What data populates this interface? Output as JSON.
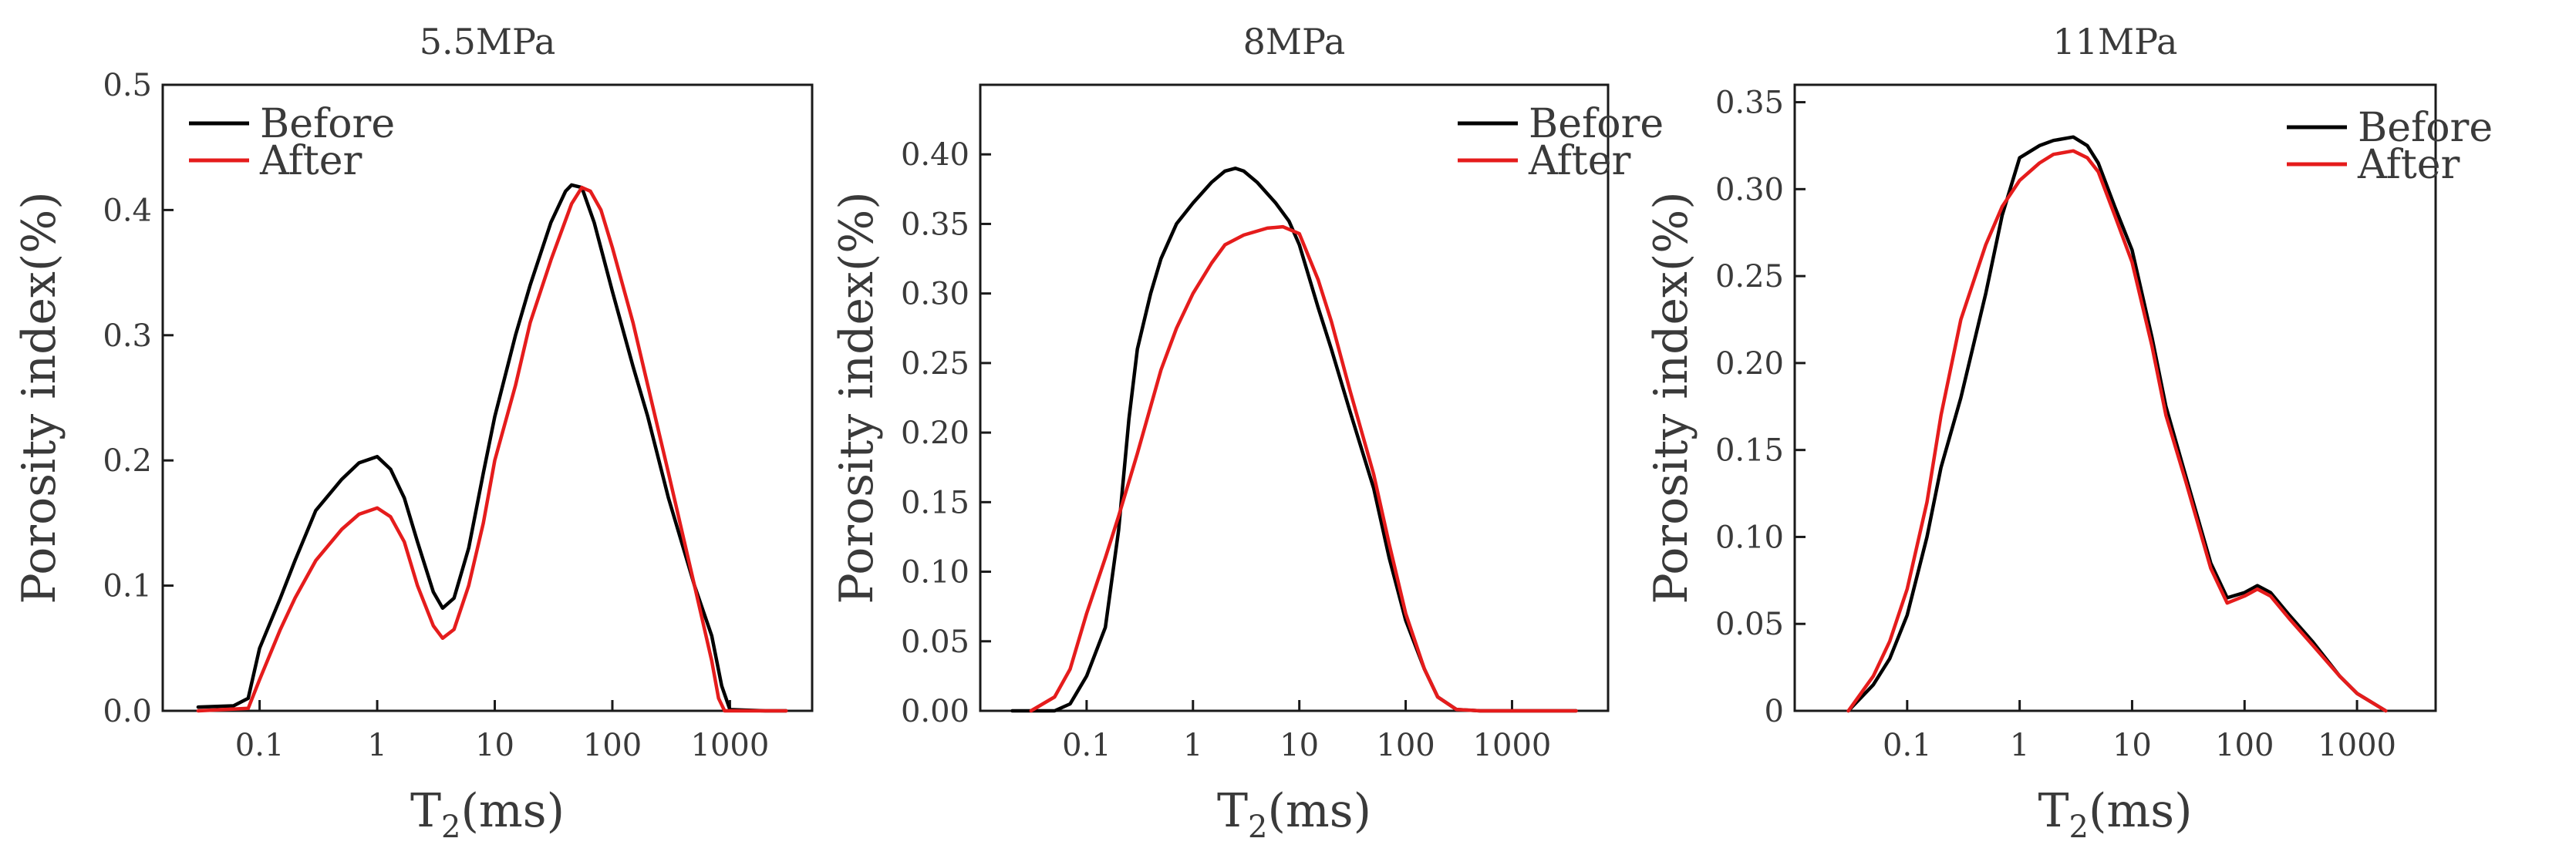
{
  "chart_data": [
    {
      "type": "line",
      "title": "5.5MPa",
      "xlabel": "T",
      "xlabel_sub": "2",
      "xlabel_unit": "(ms)",
      "ylabel": "Porosity index(%)",
      "xscale": "log",
      "xlim": [
        0.015,
        5000
      ],
      "ylim": [
        0,
        0.5
      ],
      "xticks": [
        0.1,
        1,
        10,
        100,
        1000
      ],
      "xtick_labels": [
        "0.1",
        "1",
        "10",
        "100",
        "1000"
      ],
      "yticks": [
        0,
        0.1,
        0.2,
        0.3,
        0.4,
        0.5
      ],
      "ytick_labels": [
        "0.0",
        "0.1",
        "0.2",
        "0.3",
        "0.4",
        "0.5"
      ],
      "legend_position": "top-left",
      "series": [
        {
          "name": "Before",
          "color": "#000000",
          "points": [
            [
              0.03,
              0.003
            ],
            [
              0.06,
              0.004
            ],
            [
              0.08,
              0.01
            ],
            [
              0.1,
              0.05
            ],
            [
              0.15,
              0.09
            ],
            [
              0.2,
              0.12
            ],
            [
              0.3,
              0.16
            ],
            [
              0.5,
              0.185
            ],
            [
              0.7,
              0.198
            ],
            [
              1,
              0.203
            ],
            [
              1.3,
              0.193
            ],
            [
              1.7,
              0.17
            ],
            [
              2.2,
              0.135
            ],
            [
              3,
              0.095
            ],
            [
              3.6,
              0.082
            ],
            [
              4.5,
              0.09
            ],
            [
              6,
              0.13
            ],
            [
              8,
              0.19
            ],
            [
              10,
              0.235
            ],
            [
              15,
              0.3
            ],
            [
              20,
              0.34
            ],
            [
              30,
              0.39
            ],
            [
              40,
              0.415
            ],
            [
              45,
              0.42
            ],
            [
              55,
              0.418
            ],
            [
              70,
              0.39
            ],
            [
              100,
              0.335
            ],
            [
              150,
              0.275
            ],
            [
              200,
              0.235
            ],
            [
              300,
              0.17
            ],
            [
              500,
              0.1
            ],
            [
              700,
              0.06
            ],
            [
              850,
              0.02
            ],
            [
              1000,
              0.001
            ],
            [
              2000,
              0.0
            ],
            [
              3000,
              0.0
            ]
          ]
        },
        {
          "name": "After",
          "color": "#e51c1c",
          "points": [
            [
              0.03,
              0.0
            ],
            [
              0.08,
              0.002
            ],
            [
              0.1,
              0.025
            ],
            [
              0.15,
              0.065
            ],
            [
              0.2,
              0.09
            ],
            [
              0.3,
              0.12
            ],
            [
              0.5,
              0.145
            ],
            [
              0.7,
              0.157
            ],
            [
              1,
              0.162
            ],
            [
              1.3,
              0.155
            ],
            [
              1.7,
              0.135
            ],
            [
              2.2,
              0.1
            ],
            [
              3,
              0.068
            ],
            [
              3.6,
              0.058
            ],
            [
              4.5,
              0.065
            ],
            [
              6,
              0.1
            ],
            [
              8,
              0.15
            ],
            [
              10,
              0.2
            ],
            [
              15,
              0.26
            ],
            [
              20,
              0.31
            ],
            [
              30,
              0.36
            ],
            [
              45,
              0.405
            ],
            [
              55,
              0.418
            ],
            [
              65,
              0.415
            ],
            [
              80,
              0.4
            ],
            [
              100,
              0.37
            ],
            [
              150,
              0.31
            ],
            [
              200,
              0.26
            ],
            [
              300,
              0.19
            ],
            [
              500,
              0.1
            ],
            [
              700,
              0.04
            ],
            [
              800,
              0.01
            ],
            [
              900,
              0.0
            ],
            [
              2000,
              0.0
            ],
            [
              3000,
              0.0
            ]
          ]
        }
      ]
    },
    {
      "type": "line",
      "title": "8MPa",
      "xlabel": "T",
      "xlabel_sub": "2",
      "xlabel_unit": "(ms)",
      "ylabel": "Porosity index(%)",
      "xscale": "log",
      "xlim": [
        0.01,
        8000
      ],
      "ylim": [
        0,
        0.45
      ],
      "xticks": [
        0.1,
        1,
        10,
        100,
        1000
      ],
      "xtick_labels": [
        "0.1",
        "1",
        "10",
        "100",
        "1000"
      ],
      "yticks": [
        0,
        0.05,
        0.1,
        0.15,
        0.2,
        0.25,
        0.3,
        0.35,
        0.4
      ],
      "ytick_labels": [
        "0.00",
        "0.05",
        "0.10",
        "0.15",
        "0.20",
        "0.25",
        "0.30",
        "0.35",
        "0.40"
      ],
      "legend_position": "top-right",
      "series": [
        {
          "name": "Before",
          "color": "#000000",
          "points": [
            [
              0.02,
              0.0
            ],
            [
              0.05,
              0.0
            ],
            [
              0.07,
              0.005
            ],
            [
              0.1,
              0.025
            ],
            [
              0.15,
              0.06
            ],
            [
              0.2,
              0.13
            ],
            [
              0.25,
              0.21
            ],
            [
              0.3,
              0.26
            ],
            [
              0.4,
              0.3
            ],
            [
              0.5,
              0.325
            ],
            [
              0.7,
              0.35
            ],
            [
              1,
              0.365
            ],
            [
              1.5,
              0.38
            ],
            [
              2,
              0.388
            ],
            [
              2.5,
              0.39
            ],
            [
              3,
              0.388
            ],
            [
              4,
              0.38
            ],
            [
              6,
              0.365
            ],
            [
              8,
              0.352
            ],
            [
              10,
              0.335
            ],
            [
              15,
              0.29
            ],
            [
              20,
              0.26
            ],
            [
              30,
              0.215
            ],
            [
              50,
              0.16
            ],
            [
              70,
              0.11
            ],
            [
              100,
              0.065
            ],
            [
              150,
              0.03
            ],
            [
              200,
              0.01
            ],
            [
              300,
              0.001
            ],
            [
              500,
              0.0
            ],
            [
              4000,
              0.0
            ]
          ]
        },
        {
          "name": "After",
          "color": "#e51c1c",
          "points": [
            [
              0.03,
              0.0
            ],
            [
              0.05,
              0.01
            ],
            [
              0.07,
              0.03
            ],
            [
              0.1,
              0.07
            ],
            [
              0.15,
              0.11
            ],
            [
              0.2,
              0.14
            ],
            [
              0.3,
              0.185
            ],
            [
              0.5,
              0.245
            ],
            [
              0.7,
              0.275
            ],
            [
              1,
              0.3
            ],
            [
              1.5,
              0.322
            ],
            [
              2,
              0.335
            ],
            [
              3,
              0.342
            ],
            [
              5,
              0.347
            ],
            [
              7,
              0.348
            ],
            [
              10,
              0.343
            ],
            [
              15,
              0.31
            ],
            [
              20,
              0.28
            ],
            [
              30,
              0.23
            ],
            [
              50,
              0.17
            ],
            [
              70,
              0.12
            ],
            [
              100,
              0.07
            ],
            [
              150,
              0.03
            ],
            [
              200,
              0.01
            ],
            [
              300,
              0.001
            ],
            [
              500,
              0.0
            ],
            [
              4000,
              0.0
            ]
          ]
        }
      ]
    },
    {
      "type": "line",
      "title": "11MPa",
      "xlabel": "T",
      "xlabel_sub": "2",
      "xlabel_unit": "(ms)",
      "ylabel": "Porosity index(%)",
      "xscale": "log",
      "xlim": [
        0.01,
        5000
      ],
      "ylim": [
        0,
        0.36
      ],
      "xticks": [
        0.1,
        1,
        10,
        100,
        1000
      ],
      "xtick_labels": [
        "0.1",
        "1",
        "10",
        "100",
        "1000"
      ],
      "yticks": [
        0,
        0.05,
        0.1,
        0.15,
        0.2,
        0.25,
        0.3,
        0.35
      ],
      "ytick_labels": [
        "0",
        "0.05",
        "0.10",
        "0.15",
        "0.20",
        "0.25",
        "0.30",
        "0.35"
      ],
      "legend_position": "top-right",
      "series": [
        {
          "name": "Before",
          "color": "#000000",
          "points": [
            [
              0.03,
              0.0
            ],
            [
              0.05,
              0.015
            ],
            [
              0.07,
              0.03
            ],
            [
              0.1,
              0.055
            ],
            [
              0.15,
              0.1
            ],
            [
              0.2,
              0.14
            ],
            [
              0.3,
              0.18
            ],
            [
              0.5,
              0.24
            ],
            [
              0.7,
              0.285
            ],
            [
              1,
              0.318
            ],
            [
              1.5,
              0.325
            ],
            [
              2,
              0.328
            ],
            [
              3,
              0.33
            ],
            [
              4,
              0.325
            ],
            [
              5,
              0.315
            ],
            [
              7,
              0.29
            ],
            [
              10,
              0.265
            ],
            [
              15,
              0.215
            ],
            [
              20,
              0.175
            ],
            [
              30,
              0.135
            ],
            [
              50,
              0.085
            ],
            [
              70,
              0.065
            ],
            [
              100,
              0.068
            ],
            [
              130,
              0.072
            ],
            [
              170,
              0.068
            ],
            [
              250,
              0.055
            ],
            [
              400,
              0.04
            ],
            [
              700,
              0.02
            ],
            [
              1000,
              0.01
            ],
            [
              1800,
              0.0
            ]
          ]
        },
        {
          "name": "After",
          "color": "#e51c1c",
          "points": [
            [
              0.03,
              0.0
            ],
            [
              0.05,
              0.02
            ],
            [
              0.07,
              0.04
            ],
            [
              0.1,
              0.07
            ],
            [
              0.15,
              0.12
            ],
            [
              0.2,
              0.17
            ],
            [
              0.3,
              0.225
            ],
            [
              0.5,
              0.268
            ],
            [
              0.7,
              0.29
            ],
            [
              1,
              0.305
            ],
            [
              1.5,
              0.315
            ],
            [
              2,
              0.32
            ],
            [
              3,
              0.322
            ],
            [
              4,
              0.318
            ],
            [
              5,
              0.31
            ],
            [
              7,
              0.285
            ],
            [
              10,
              0.258
            ],
            [
              15,
              0.21
            ],
            [
              20,
              0.17
            ],
            [
              30,
              0.132
            ],
            [
              50,
              0.082
            ],
            [
              70,
              0.062
            ],
            [
              100,
              0.066
            ],
            [
              130,
              0.07
            ],
            [
              170,
              0.066
            ],
            [
              250,
              0.053
            ],
            [
              400,
              0.038
            ],
            [
              700,
              0.02
            ],
            [
              1000,
              0.01
            ],
            [
              1800,
              0.0
            ]
          ]
        }
      ]
    }
  ]
}
